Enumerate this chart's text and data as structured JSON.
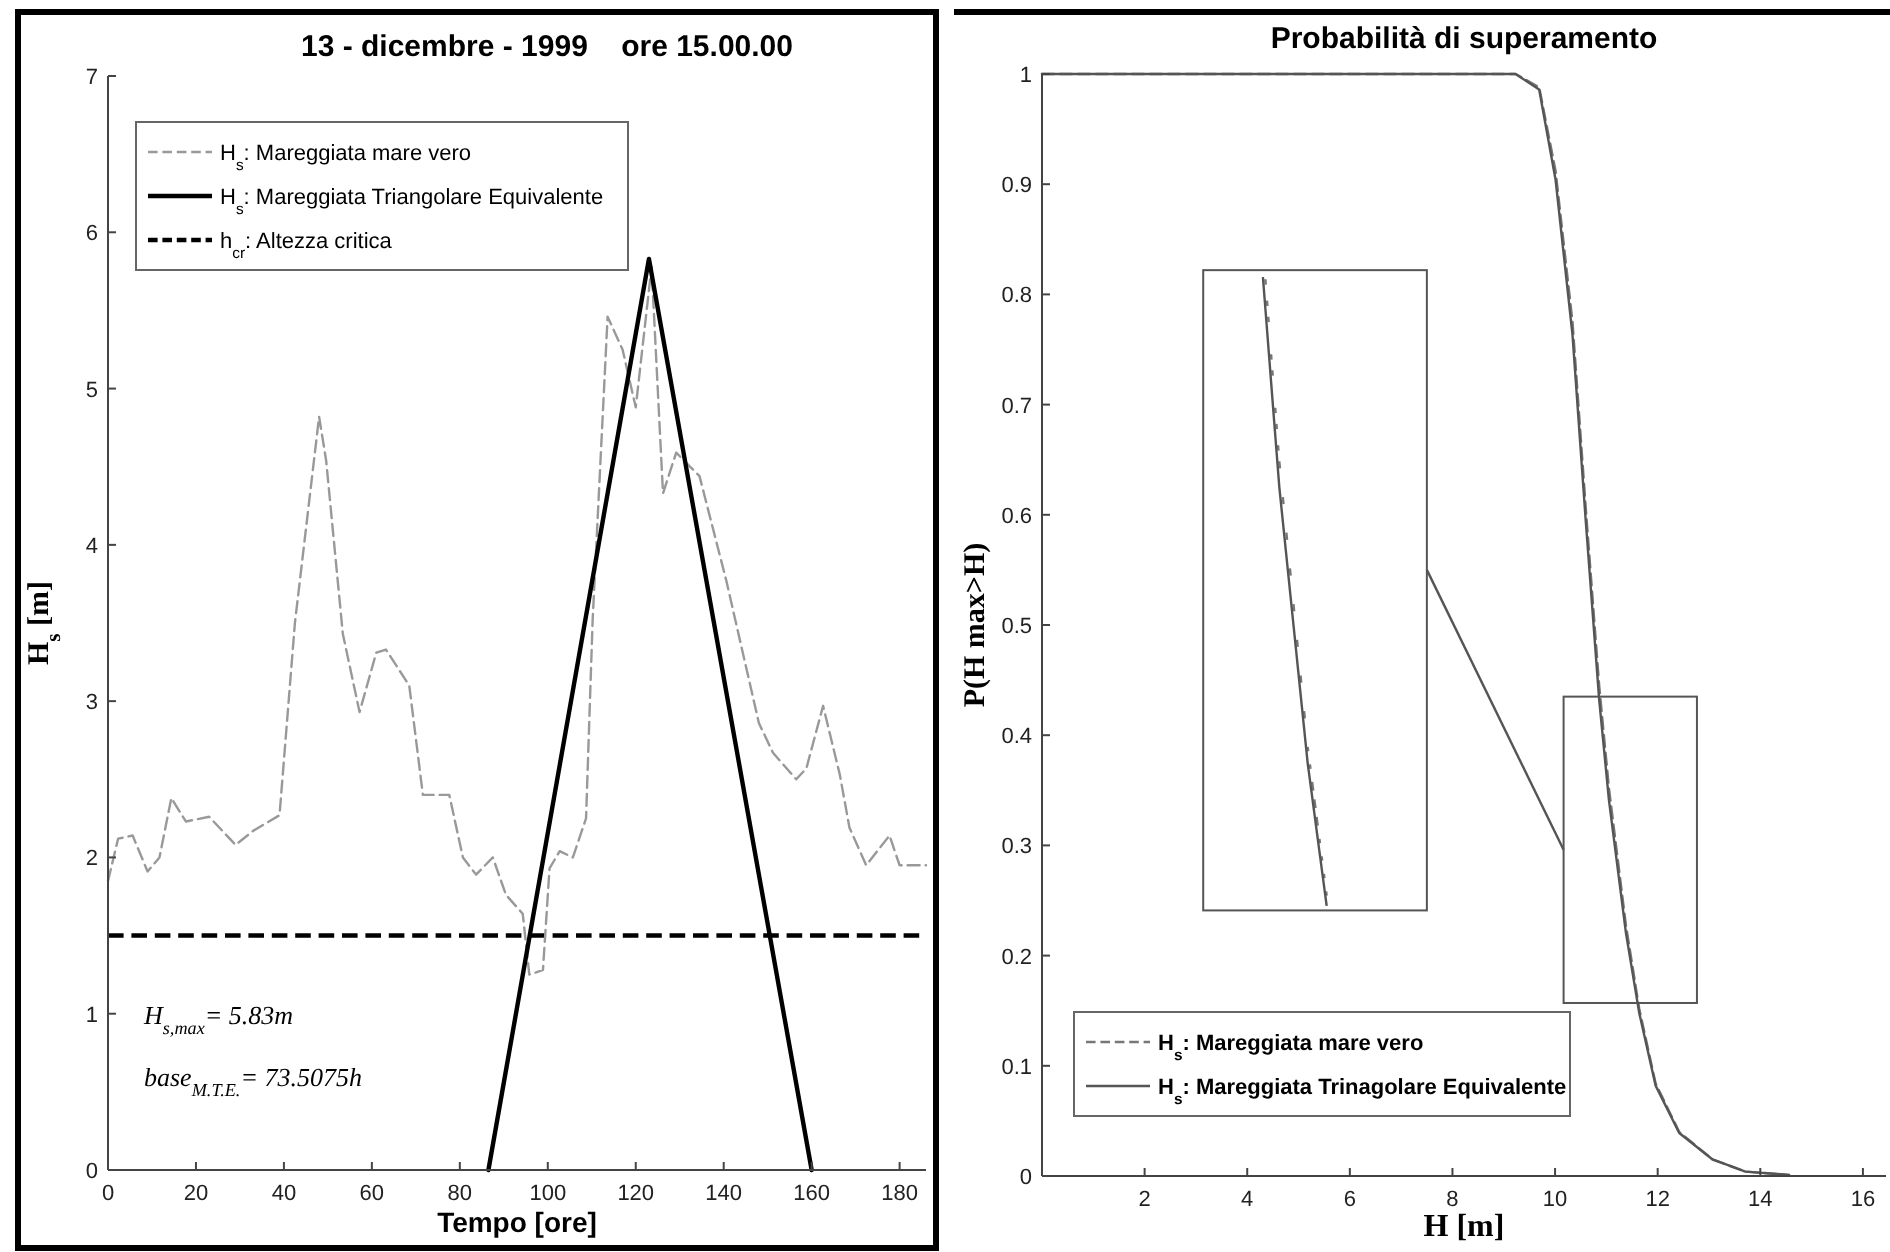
{
  "chart_data": [
    {
      "type": "line",
      "title": "13 - dicembre - 1999    ore 15.00.00",
      "xlabel": "Tempo [ore]",
      "ylabel": "H$_{s}$ [m]",
      "xlim": [
        0,
        186
      ],
      "xticks": [
        0,
        20,
        40,
        60,
        80,
        100,
        120,
        140,
        160,
        180
      ],
      "ylim": [
        0,
        7
      ],
      "yticks": [
        0,
        1,
        2,
        3,
        4,
        5,
        6,
        7
      ],
      "legend": "top left",
      "series": [
        {
          "name": "H$_{s}$: Mareggiata mare vero",
          "color": "#999999",
          "line_style": "dashed",
          "x": [
            0,
            2.3,
            5.6,
            9,
            11.7,
            14.4,
            17.7,
            23,
            29,
            33,
            39,
            42.5,
            48,
            49.6,
            53.4,
            57.2,
            61,
            63.2,
            68.5,
            71.6,
            77.6,
            80.7,
            83.7,
            87.5,
            90.5,
            94.3,
            95.8,
            98.9,
            100.4,
            102.7,
            105.7,
            108.7,
            110.2,
            113.6,
            117,
            120,
            123.6,
            126.2,
            129.2,
            134.5,
            140.6,
            148,
            151.2,
            156.5,
            158.8,
            162.6,
            166.4,
            168.6,
            172.4,
            177.7,
            180,
            186
          ],
          "values": [
            1.85,
            2.12,
            2.14,
            1.91,
            2.0,
            2.38,
            2.23,
            2.26,
            2.08,
            2.17,
            2.27,
            3.5,
            4.82,
            4.54,
            3.43,
            2.93,
            3.31,
            3.33,
            3.1,
            2.4,
            2.4,
            2.0,
            1.89,
            2.0,
            1.76,
            1.64,
            1.25,
            1.28,
            1.93,
            2.04,
            2.0,
            2.25,
            3.52,
            5.46,
            5.25,
            4.88,
            5.78,
            4.33,
            4.59,
            4.44,
            3.77,
            2.86,
            2.67,
            2.5,
            2.57,
            2.97,
            2.53,
            2.19,
            1.95,
            2.14,
            1.95,
            1.95
          ]
        },
        {
          "name": "H$_{s}$: Mareggiata Triangolare Equivalente",
          "color": "#000000",
          "line_style": "solid",
          "x": [
            86.5,
            123,
            160
          ],
          "values": [
            0,
            5.83,
            0
          ]
        }
      ],
      "ref_lines": [
        {
          "axis": "y",
          "value": 1.5,
          "label": "h$_{cr}$: Altezza critica",
          "color": "#000000",
          "line_style": "dashed"
        }
      ],
      "annotations": [
        "H$_{s,max}$= 5.83m",
        "base$_{M.T.E.}$= 73.5075h"
      ]
    },
    {
      "type": "line",
      "title": "Probabilità di superamento",
      "xlabel": "H [m]",
      "ylabel": "P(H max>H)",
      "xlim": [
        0,
        16.45
      ],
      "xticks": [
        2,
        4,
        6,
        8,
        10,
        12,
        14,
        16
      ],
      "ylim": [
        0,
        1
      ],
      "yticks": [
        0,
        0.1,
        0.2,
        0.3,
        0.4,
        0.5,
        0.6,
        0.7,
        0.8,
        0.9,
        1
      ],
      "legend": "bottom left",
      "series": [
        {
          "name": "H$_{s}$: Mareggiata mare vero",
          "color": "#777777",
          "line_style": "dashed",
          "x": [
            0,
            9.23,
            9.69,
            10.01,
            10.34,
            10.6,
            10.86,
            11.05,
            11.38,
            11.64,
            11.96,
            12.42,
            13.07,
            13.71,
            14.56
          ],
          "values": [
            1,
            1,
            0.988,
            0.912,
            0.775,
            0.605,
            0.445,
            0.352,
            0.228,
            0.152,
            0.084,
            0.04,
            0.015,
            0.004,
            0.001
          ]
        },
        {
          "name": "H$_{s}$: Mareggiata Trinagolare Equivalente",
          "color": "#555555",
          "line_style": "solid",
          "x": [
            0,
            9.23,
            9.69,
            10.01,
            10.34,
            10.6,
            10.86,
            11.05,
            11.38,
            11.64,
            11.96,
            12.42,
            13.07,
            13.71,
            14.56
          ],
          "values": [
            1,
            1,
            0.986,
            0.904,
            0.763,
            0.593,
            0.432,
            0.341,
            0.221,
            0.148,
            0.082,
            0.039,
            0.015,
            0.004,
            0.001
          ]
        }
      ]
    }
  ]
}
